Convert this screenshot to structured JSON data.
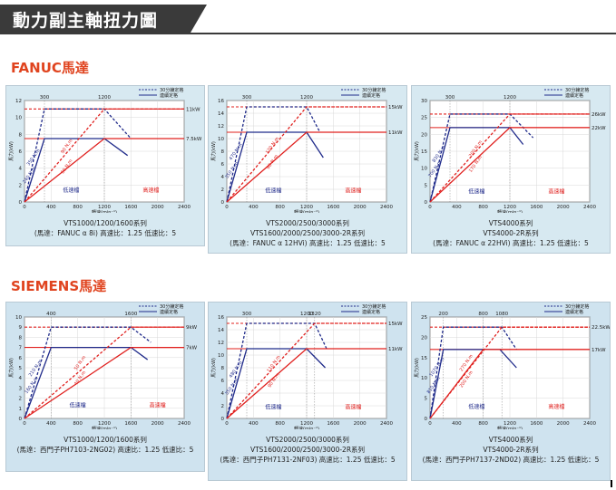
{
  "header": {
    "title": "動力副主軸扭力圖"
  },
  "sections": [
    {
      "title": "FANUC馬達"
    },
    {
      "title": "SIEMENS馬達"
    }
  ],
  "legend": {
    "s30": "30分鐘定格",
    "cont": "連續定格"
  },
  "zones": {
    "low": "低速檔",
    "high": "高速檔"
  },
  "xlabel": "轉速(min⁻¹)",
  "ylabel": "馬力(kW)",
  "colors": {
    "red": "#e0201e",
    "blue": "#1f2a8a",
    "accent": "#e0441f"
  },
  "chart_data": [
    {
      "type": "line",
      "xlim": [
        0,
        2400
      ],
      "ylim": [
        0,
        12
      ],
      "yticks": [
        0,
        2,
        4,
        6,
        8,
        10,
        12
      ],
      "xticks": [
        0,
        400,
        800,
        1200,
        1600,
        2000,
        2400
      ],
      "top_marks": [
        {
          "x": 300,
          "label": "300"
        },
        {
          "x": 1200,
          "label": "1200"
        }
      ],
      "ref_lines": [
        {
          "y": 11,
          "label": "11kW",
          "color": "red",
          "dashed": true
        },
        {
          "y": 7.5,
          "label": "7.5kW",
          "color": "red",
          "dashed": false
        }
      ],
      "series": [
        {
          "name": "30分鐘定格",
          "gear": "low",
          "dashed": true,
          "color": "blue",
          "x": [
            0,
            300,
            1200,
            1600
          ],
          "y": [
            0,
            11,
            11,
            7.5
          ]
        },
        {
          "name": "連續定格",
          "gear": "low",
          "dashed": false,
          "color": "blue",
          "x": [
            0,
            300,
            1200,
            1550
          ],
          "y": [
            0,
            7.5,
            7.5,
            5.5
          ]
        },
        {
          "name": "30分鐘定格",
          "gear": "high",
          "dashed": true,
          "color": "red",
          "x": [
            0,
            1200,
            2400
          ],
          "y": [
            0,
            11,
            11
          ]
        },
        {
          "name": "連續定格",
          "gear": "high",
          "dashed": false,
          "color": "red",
          "x": [
            0,
            1200,
            2400
          ],
          "y": [
            0,
            7.5,
            7.5
          ]
        }
      ],
      "torque_labels": [
        {
          "text": "350 N.m",
          "x": 150,
          "y": 5.2,
          "color": "blue"
        },
        {
          "text": "240 N.m",
          "x": 90,
          "y": 3.1,
          "color": "blue"
        },
        {
          "text": "90 N.m",
          "x": 650,
          "y": 6.5,
          "color": "red"
        },
        {
          "text": "60 N.m",
          "x": 650,
          "y": 4.1,
          "color": "red"
        }
      ],
      "zone_pos": {
        "low": [
          700,
          1.2
        ],
        "high": [
          1900,
          1.2
        ]
      },
      "caption": [
        "VTS1000/1200/1600系列",
        "(馬達：FANUC α 8i) 高速比：1.25  低速比：5"
      ]
    },
    {
      "type": "line",
      "xlim": [
        0,
        2400
      ],
      "ylim": [
        0,
        16
      ],
      "yticks": [
        0,
        2,
        4,
        6,
        8,
        10,
        12,
        14,
        16
      ],
      "xticks": [
        0,
        400,
        800,
        1200,
        1600,
        2000,
        2400
      ],
      "top_marks": [
        {
          "x": 300,
          "label": "300"
        },
        {
          "x": 1200,
          "label": "1200"
        }
      ],
      "ref_lines": [
        {
          "y": 15,
          "label": "15kW",
          "color": "red",
          "dashed": true
        },
        {
          "y": 11,
          "label": "11kW",
          "color": "red",
          "dashed": false
        }
      ],
      "series": [
        {
          "name": "30分鐘定格",
          "gear": "low",
          "dashed": true,
          "color": "blue",
          "x": [
            0,
            300,
            1200,
            1400
          ],
          "y": [
            0,
            15,
            15,
            11
          ]
        },
        {
          "name": "連續定格",
          "gear": "low",
          "dashed": false,
          "color": "blue",
          "x": [
            0,
            300,
            1200,
            1450
          ],
          "y": [
            0,
            11,
            11,
            7
          ]
        },
        {
          "name": "30分鐘定格",
          "gear": "high",
          "dashed": true,
          "color": "red",
          "x": [
            0,
            1200,
            2400
          ],
          "y": [
            0,
            15,
            15
          ]
        },
        {
          "name": "連續定格",
          "gear": "high",
          "dashed": false,
          "color": "red",
          "x": [
            0,
            1200,
            2400
          ],
          "y": [
            0,
            11,
            11
          ]
        }
      ],
      "torque_labels": [
        {
          "text": "470 N.m",
          "x": 150,
          "y": 7.8,
          "color": "blue"
        },
        {
          "text": "350 N.m",
          "x": 90,
          "y": 4.9,
          "color": "blue"
        },
        {
          "text": "120 N.m",
          "x": 700,
          "y": 8.8,
          "color": "red"
        },
        {
          "text": "90 N.m",
          "x": 700,
          "y": 6.2,
          "color": "red"
        }
      ],
      "zone_pos": {
        "low": [
          700,
          1.5
        ],
        "high": [
          1900,
          1.5
        ]
      },
      "caption": [
        "VTS2000/2500/3000系列",
        "VTS1600/2000/2500/3000-2R系列",
        "(馬達：FANUC α 12HVi) 高速比：1.25  低速比：5"
      ]
    },
    {
      "type": "line",
      "xlim": [
        0,
        2400
      ],
      "ylim": [
        0,
        30
      ],
      "yticks": [
        0,
        5,
        10,
        15,
        20,
        25,
        30
      ],
      "xticks": [
        0,
        400,
        800,
        1200,
        1600,
        2000,
        2400
      ],
      "top_marks": [
        {
          "x": 300,
          "label": "300"
        },
        {
          "x": 1200,
          "label": "1200"
        }
      ],
      "ref_lines": [
        {
          "y": 26,
          "label": "26kW",
          "color": "red",
          "dashed": true
        },
        {
          "y": 22,
          "label": "22kW",
          "color": "red",
          "dashed": false
        }
      ],
      "series": [
        {
          "name": "30分鐘定格",
          "gear": "low",
          "dashed": true,
          "color": "blue",
          "x": [
            0,
            300,
            1200,
            1550
          ],
          "y": [
            0,
            26,
            26,
            19
          ]
        },
        {
          "name": "連續定格",
          "gear": "low",
          "dashed": false,
          "color": "blue",
          "x": [
            0,
            300,
            1200,
            1400
          ],
          "y": [
            0,
            22,
            22,
            17
          ]
        },
        {
          "name": "30分鐘定格",
          "gear": "high",
          "dashed": true,
          "color": "red",
          "x": [
            0,
            1200,
            2400
          ],
          "y": [
            0,
            26,
            26
          ]
        },
        {
          "name": "連續定格",
          "gear": "high",
          "dashed": false,
          "color": "red",
          "x": [
            0,
            1200,
            2400
          ],
          "y": [
            0,
            22,
            22
          ]
        }
      ],
      "torque_labels": [
        {
          "text": "830 N.m",
          "x": 150,
          "y": 14,
          "color": "blue"
        },
        {
          "text": "700 N.m",
          "x": 90,
          "y": 9.5,
          "color": "blue"
        },
        {
          "text": "200 N.m",
          "x": 700,
          "y": 15.5,
          "color": "red"
        },
        {
          "text": "170 N.m",
          "x": 700,
          "y": 11,
          "color": "red"
        }
      ],
      "zone_pos": {
        "low": [
          700,
          2.5
        ],
        "high": [
          1900,
          2.5
        ]
      },
      "caption": [
        "VTS4000系列",
        "VTS4000-2R系列",
        "(馬達：FANUC α 22HVi) 高速比：1.25  低速比：5"
      ]
    },
    {
      "type": "line",
      "xlim": [
        0,
        2400
      ],
      "ylim": [
        0,
        10
      ],
      "yticks": [
        0,
        1,
        2,
        3,
        4,
        5,
        6,
        7,
        8,
        9,
        10
      ],
      "xticks": [
        0,
        400,
        800,
        1200,
        1600,
        2000,
        2400
      ],
      "top_marks": [
        {
          "x": 400,
          "label": "400"
        },
        {
          "x": 1600,
          "label": "1600"
        }
      ],
      "ref_lines": [
        {
          "y": 9,
          "label": "9kW",
          "color": "red",
          "dashed": true
        },
        {
          "y": 7,
          "label": "7kW",
          "color": "red",
          "dashed": false
        }
      ],
      "series": [
        {
          "name": "30分鐘定格",
          "gear": "low",
          "dashed": true,
          "color": "blue",
          "x": [
            0,
            400,
            1600,
            1900
          ],
          "y": [
            0,
            9,
            9,
            7.5
          ]
        },
        {
          "name": "連續定格",
          "gear": "low",
          "dashed": false,
          "color": "blue",
          "x": [
            0,
            400,
            1600,
            1850
          ],
          "y": [
            0,
            7,
            7,
            5.8
          ]
        },
        {
          "name": "30分鐘定格",
          "gear": "high",
          "dashed": true,
          "color": "red",
          "x": [
            0,
            1600,
            2400
          ],
          "y": [
            0,
            9,
            9
          ]
        },
        {
          "name": "連續定格",
          "gear": "high",
          "dashed": false,
          "color": "red",
          "x": [
            0,
            1600,
            2400
          ],
          "y": [
            0,
            7,
            7
          ]
        }
      ],
      "torque_labels": [
        {
          "text": "210 N.m",
          "x": 180,
          "y": 4.9,
          "color": "blue"
        },
        {
          "text": "160 N.m",
          "x": 120,
          "y": 3.2,
          "color": "blue"
        },
        {
          "text": "50 N.m",
          "x": 850,
          "y": 5.4,
          "color": "red"
        },
        {
          "text": "40 N.m",
          "x": 850,
          "y": 3.9,
          "color": "red"
        }
      ],
      "zone_pos": {
        "low": [
          800,
          1.1
        ],
        "high": [
          2000,
          1.1
        ]
      },
      "caption": [
        "VTS1000/1200/1600系列",
        "(馬達：西門子PH7103-2NG02) 高速比：1.25  低速比：5"
      ]
    },
    {
      "type": "line",
      "xlim": [
        0,
        2400
      ],
      "ylim": [
        0,
        16
      ],
      "yticks": [
        0,
        2,
        4,
        6,
        8,
        10,
        12,
        14,
        16
      ],
      "xticks": [
        0,
        400,
        800,
        1200,
        1600,
        2000,
        2400
      ],
      "top_marks": [
        {
          "x": 300,
          "label": "300"
        },
        {
          "x": 1200,
          "label": "1200"
        },
        {
          "x": 1320,
          "label": "1320"
        }
      ],
      "ref_lines": [
        {
          "y": 15,
          "label": "15kW",
          "color": "red",
          "dashed": true
        },
        {
          "y": 11,
          "label": "11kW",
          "color": "red",
          "dashed": false
        }
      ],
      "series": [
        {
          "name": "30分鐘定格",
          "gear": "low",
          "dashed": true,
          "color": "blue",
          "x": [
            0,
            300,
            1320,
            1500
          ],
          "y": [
            0,
            15,
            15,
            11
          ]
        },
        {
          "name": "連續定格",
          "gear": "low",
          "dashed": false,
          "color": "blue",
          "x": [
            0,
            300,
            1200,
            1480
          ],
          "y": [
            0,
            11,
            11,
            8
          ]
        },
        {
          "name": "30分鐘定格",
          "gear": "high",
          "dashed": true,
          "color": "red",
          "x": [
            0,
            1320,
            2400
          ],
          "y": [
            0,
            15,
            15
          ]
        },
        {
          "name": "連續定格",
          "gear": "high",
          "dashed": false,
          "color": "red",
          "x": [
            0,
            1200,
            2400
          ],
          "y": [
            0,
            11,
            11
          ]
        }
      ],
      "torque_labels": [
        {
          "text": "480 N.m",
          "x": 150,
          "y": 7.6,
          "color": "blue"
        },
        {
          "text": "350 N.m",
          "x": 90,
          "y": 4.9,
          "color": "blue"
        },
        {
          "text": "110 N.m",
          "x": 720,
          "y": 8.5,
          "color": "red"
        },
        {
          "text": "90 N.m",
          "x": 720,
          "y": 5.9,
          "color": "red"
        }
      ],
      "zone_pos": {
        "low": [
          700,
          1.5
        ],
        "high": [
          1900,
          1.5
        ]
      },
      "caption": [
        "VTS2000/2500/3000系列",
        "VTS1600/2000/2500/3000-2R系列",
        "(馬達：西門子PH7131-2NF03) 高速比：1.25  低速比：5"
      ]
    },
    {
      "type": "line",
      "xlim": [
        0,
        2400
      ],
      "ylim": [
        0,
        25
      ],
      "yticks": [
        0,
        5,
        10,
        15,
        20,
        25
      ],
      "xticks": [
        0,
        400,
        800,
        1200,
        1600,
        2000,
        2400
      ],
      "top_marks": [
        {
          "x": 200,
          "label": "200"
        },
        {
          "x": 800,
          "label": "800"
        },
        {
          "x": 1080,
          "label": "1080"
        }
      ],
      "ref_lines": [
        {
          "y": 22.5,
          "label": "22.5kW",
          "color": "red",
          "dashed": true
        },
        {
          "y": 17,
          "label": "17kW",
          "color": "red",
          "dashed": false
        }
      ],
      "series": [
        {
          "name": "30分鐘定格",
          "gear": "low",
          "dashed": true,
          "color": "blue",
          "x": [
            0,
            200,
            1080,
            1300
          ],
          "y": [
            0,
            22.5,
            22.5,
            17
          ]
        },
        {
          "name": "連續定格",
          "gear": "low",
          "dashed": false,
          "color": "blue",
          "x": [
            0,
            200,
            800,
            1050,
            1300
          ],
          "y": [
            0,
            17,
            17,
            17,
            12.5
          ]
        },
        {
          "name": "30分鐘定格",
          "gear": "high",
          "dashed": true,
          "color": "red",
          "x": [
            0,
            1080,
            2400
          ],
          "y": [
            0,
            22.5,
            22.5
          ]
        },
        {
          "name": "連續定格",
          "gear": "high",
          "dashed": false,
          "color": "red",
          "x": [
            0,
            800,
            2400
          ],
          "y": [
            0,
            17,
            17
          ]
        }
      ],
      "torque_labels": [
        {
          "text": "1070 N.m",
          "x": 120,
          "y": 12.5,
          "color": "blue"
        },
        {
          "text": "810 N.m",
          "x": 70,
          "y": 8,
          "color": "blue"
        },
        {
          "text": "270 N.m",
          "x": 560,
          "y": 13.5,
          "color": "red"
        },
        {
          "text": "200 N.m",
          "x": 560,
          "y": 9.5,
          "color": "red"
        }
      ],
      "zone_pos": {
        "low": [
          700,
          2.5
        ],
        "high": [
          1900,
          2.5
        ]
      },
      "caption": [
        "VTS4000系列",
        "VTS4000-2R系列",
        "(馬達：西門子PH7137-2ND02) 高速比：1.25  低速比：5"
      ]
    }
  ]
}
